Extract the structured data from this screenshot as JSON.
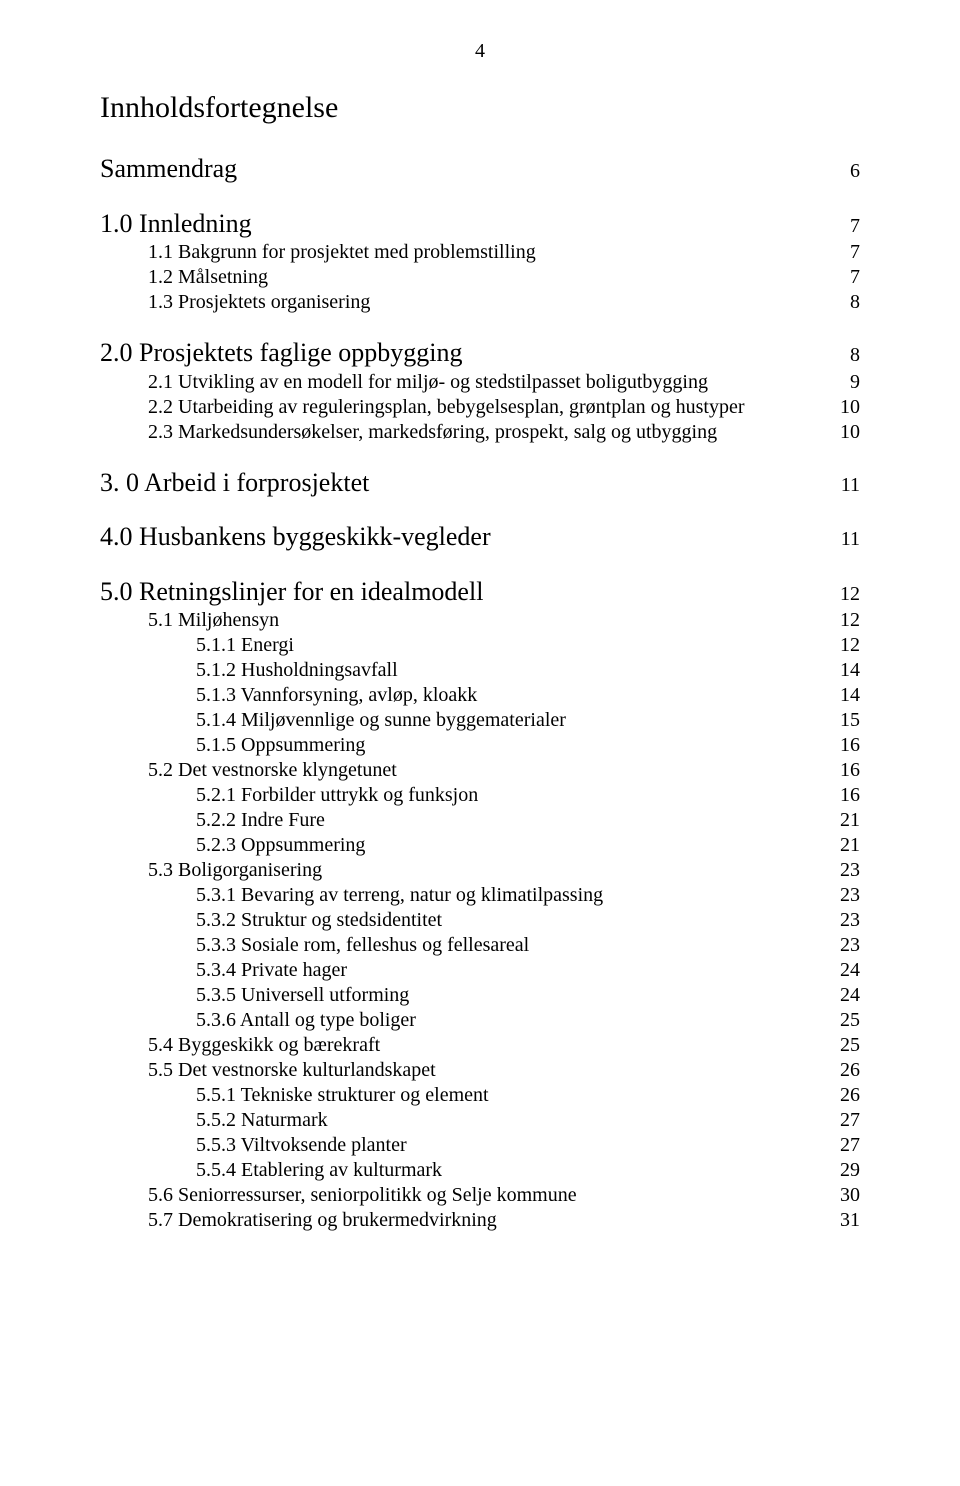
{
  "pageNumber": "4",
  "title": "Innholdsfortegnelse",
  "entries": [
    {
      "level": 0,
      "label": "Sammendrag",
      "page": "6",
      "gap": 0
    },
    {
      "level": 0,
      "label": "1.0 Innledning",
      "page": "7",
      "gap": 22
    },
    {
      "level": 1,
      "label": "1.1 Bakgrunn for prosjektet med problemstilling",
      "page": "7",
      "gap": 0
    },
    {
      "level": 1,
      "label": "1.2 Målsetning",
      "page": "7",
      "gap": 0
    },
    {
      "level": 1,
      "label": "1.3 Prosjektets organisering",
      "page": "8",
      "gap": 0
    },
    {
      "level": 0,
      "label": "2.0 Prosjektets faglige oppbygging",
      "page": "8",
      "gap": 22
    },
    {
      "level": 1,
      "label": "2.1 Utvikling av en modell for miljø- og stedstilpasset boligutbygging",
      "page": "9",
      "gap": 0
    },
    {
      "level": 1,
      "label": "2.2 Utarbeiding av reguleringsplan, bebygelsesplan, grøntplan og hustyper",
      "page": "10",
      "gap": 0
    },
    {
      "level": 1,
      "label": "2.3 Markedsundersøkelser, markedsføring, prospekt, salg og utbygging",
      "page": "10",
      "gap": 0
    },
    {
      "level": 0,
      "label": "3. 0 Arbeid i forprosjektet",
      "page": "11",
      "gap": 22
    },
    {
      "level": 0,
      "label": "4.0 Husbankens byggeskikk-vegleder",
      "page": "11",
      "gap": 22
    },
    {
      "level": 0,
      "label": "5.0 Retningslinjer for en idealmodell",
      "page": "12",
      "gap": 22
    },
    {
      "level": 1,
      "label": "5.1 Miljøhensyn",
      "page": "12",
      "gap": 0
    },
    {
      "level": 2,
      "label": "5.1.1 Energi",
      "page": "12",
      "gap": 0
    },
    {
      "level": 2,
      "label": "5.1.2 Husholdningsavfall",
      "page": "14",
      "gap": 0
    },
    {
      "level": 2,
      "label": "5.1.3 Vannforsyning, avløp, kloakk",
      "page": "14",
      "gap": 0
    },
    {
      "level": 2,
      "label": "5.1.4 Miljøvennlige og sunne byggematerialer",
      "page": "15",
      "gap": 0
    },
    {
      "level": 2,
      "label": "5.1.5 Oppsummering",
      "page": "16",
      "gap": 0
    },
    {
      "level": 1,
      "label": "5.2 Det vestnorske klyngetunet",
      "page": "16",
      "gap": 0
    },
    {
      "level": 2,
      "label": "5.2.1 Forbilder uttrykk og funksjon",
      "page": "16",
      "gap": 0
    },
    {
      "level": 2,
      "label": "5.2.2 Indre Fure",
      "page": "21",
      "gap": 0
    },
    {
      "level": 2,
      "label": "5.2.3 Oppsummering",
      "page": "21",
      "gap": 0
    },
    {
      "level": 1,
      "label": "5.3 Boligorganisering",
      "page": "23",
      "gap": 0
    },
    {
      "level": 2,
      "label": "5.3.1 Bevaring av terreng, natur og klimatilpassing",
      "page": "23",
      "gap": 0
    },
    {
      "level": 2,
      "label": "5.3.2 Struktur og stedsidentitet",
      "page": "23",
      "gap": 0
    },
    {
      "level": 2,
      "label": "5.3.3 Sosiale rom, felleshus og fellesareal",
      "page": "23",
      "gap": 0
    },
    {
      "level": 2,
      "label": "5.3.4 Private hager",
      "page": "24",
      "gap": 0
    },
    {
      "level": 2,
      "label": "5.3.5 Universell utforming",
      "page": "24",
      "gap": 0
    },
    {
      "level": 2,
      "label": "5.3.6 Antall og type boliger",
      "page": "25",
      "gap": 0
    },
    {
      "level": 1,
      "label": "5.4 Byggeskikk og bærekraft",
      "page": "25",
      "gap": 0
    },
    {
      "level": 1,
      "label": "5.5 Det vestnorske kulturlandskapet",
      "page": "26",
      "gap": 0
    },
    {
      "level": 2,
      "label": "5.5.1 Tekniske strukturer og element",
      "page": "26",
      "gap": 0
    },
    {
      "level": 2,
      "label": "5.5.2 Naturmark",
      "page": "27",
      "gap": 0
    },
    {
      "level": 2,
      "label": "5.5.3 Viltvoksende planter",
      "page": "27",
      "gap": 0
    },
    {
      "level": 2,
      "label": "5.5.4 Etablering av kulturmark",
      "page": "29",
      "gap": 0
    },
    {
      "level": 1,
      "label": "5.6 Seniorressurser, seniorpolitikk og Selje kommune",
      "page": "30",
      "gap": 0
    },
    {
      "level": 1,
      "label": "5.7 Demokratisering og brukermedvirkning",
      "page": "31",
      "gap": 0
    }
  ]
}
